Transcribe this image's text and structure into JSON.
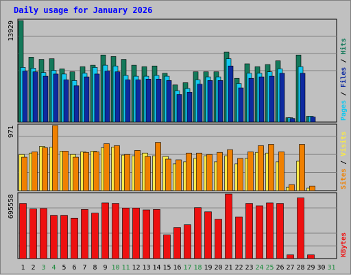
{
  "title": "Daily usage for January 2026",
  "colors": {
    "hits": "#14795a",
    "files": "#12c8f0",
    "pages": "#0e2aa0",
    "visits": "#f08000",
    "sites": "#f8e848",
    "kbytes": "#ee1010",
    "weekend_day": "#1a8a3a",
    "weekday_day": "#000000"
  },
  "chart_data": [
    {
      "type": "bar",
      "panel": "hits-files-pages",
      "ymax_label": "13929",
      "ylim": [
        0,
        13929
      ],
      "right_label": [
        {
          "text": "Pages",
          "color": "#12c8f0"
        },
        {
          "text": " / ",
          "color": "#000000"
        },
        {
          "text": "Files",
          "color": "#0e2aa0"
        },
        {
          "text": " / ",
          "color": "#000000"
        },
        {
          "text": "Hits",
          "color": "#14795a"
        }
      ],
      "categories": [
        "1",
        "2",
        "3",
        "4",
        "5",
        "6",
        "7",
        "8",
        "9",
        "10",
        "11",
        "12",
        "13",
        "14",
        "15",
        "16",
        "17",
        "18",
        "19",
        "20",
        "21",
        "22",
        "23",
        "24",
        "25",
        "26",
        "27",
        "28",
        "29",
        "30",
        "31"
      ],
      "series": [
        {
          "name": "Hits",
          "values": [
            13929,
            8900,
            8600,
            8700,
            7300,
            6900,
            7600,
            7800,
            9200,
            9000,
            8600,
            7800,
            7600,
            7700,
            6700,
            5100,
            5400,
            6900,
            6900,
            6900,
            9600,
            6000,
            8000,
            7600,
            7900,
            8400,
            600,
            9200,
            800,
            0,
            0
          ]
        },
        {
          "name": "Files",
          "values": [
            7500,
            7400,
            6800,
            7100,
            6600,
            5700,
            6700,
            7500,
            7800,
            7700,
            6400,
            6300,
            6300,
            6400,
            6300,
            4300,
            4600,
            5800,
            6200,
            6200,
            8700,
            5300,
            6700,
            6700,
            6900,
            7300,
            600,
            7600,
            800,
            0,
            0
          ]
        },
        {
          "name": "Pages",
          "values": [
            7000,
            6900,
            6300,
            6600,
            5800,
            5000,
            6200,
            6600,
            7000,
            6900,
            5800,
            5800,
            5900,
            5900,
            5700,
            3800,
            4100,
            5200,
            5700,
            5700,
            7700,
            4700,
            6000,
            6200,
            6300,
            6700,
            500,
            6700,
            700,
            0,
            0
          ]
        }
      ]
    },
    {
      "type": "bar",
      "panel": "visits-sites",
      "ymax_label": "971",
      "ylim": [
        0,
        971
      ],
      "right_label": [
        {
          "text": "Sites",
          "color": "#f08000"
        },
        {
          "text": " / ",
          "color": "#000000"
        },
        {
          "text": "Visits",
          "color": "#f8e848"
        }
      ],
      "categories": [
        "1",
        "2",
        "3",
        "4",
        "5",
        "6",
        "7",
        "8",
        "9",
        "10",
        "11",
        "12",
        "13",
        "14",
        "15",
        "16",
        "17",
        "18",
        "19",
        "20",
        "21",
        "22",
        "23",
        "24",
        "25",
        "26",
        "27",
        "28",
        "29",
        "30",
        "31"
      ],
      "series": [
        {
          "name": "Visits",
          "values": [
            540,
            560,
            660,
            650,
            590,
            540,
            580,
            590,
            640,
            650,
            530,
            520,
            560,
            520,
            510,
            400,
            430,
            480,
            520,
            430,
            520,
            400,
            480,
            570,
            560,
            430,
            50,
            440,
            40,
            0,
            0
          ]
        },
        {
          "name": "Sites",
          "values": [
            500,
            580,
            640,
            971,
            590,
            500,
            570,
            580,
            700,
            670,
            540,
            600,
            510,
            720,
            470,
            460,
            560,
            560,
            540,
            570,
            610,
            480,
            580,
            670,
            690,
            580,
            90,
            690,
            70,
            0,
            0
          ]
        }
      ]
    },
    {
      "type": "bar",
      "panel": "kbytes",
      "ymax_label": "695558",
      "ylim": [
        0,
        695558
      ],
      "right_label": [
        {
          "text": "KBytes",
          "color": "#ee1010"
        }
      ],
      "categories": [
        "1",
        "2",
        "3",
        "4",
        "5",
        "6",
        "7",
        "8",
        "9",
        "10",
        "11",
        "12",
        "13",
        "14",
        "15",
        "16",
        "17",
        "18",
        "19",
        "20",
        "21",
        "22",
        "23",
        "24",
        "25",
        "26",
        "27",
        "28",
        "29",
        "30",
        "31"
      ],
      "series": [
        {
          "name": "KBytes",
          "values": [
            595000,
            535000,
            540000,
            465000,
            465000,
            435000,
            530000,
            490000,
            600000,
            595000,
            545000,
            545000,
            525000,
            530000,
            255000,
            335000,
            365000,
            550000,
            505000,
            425000,
            695558,
            450000,
            595000,
            570000,
            600000,
            595000,
            40000,
            655000,
            40000,
            0,
            0
          ]
        }
      ]
    }
  ]
}
